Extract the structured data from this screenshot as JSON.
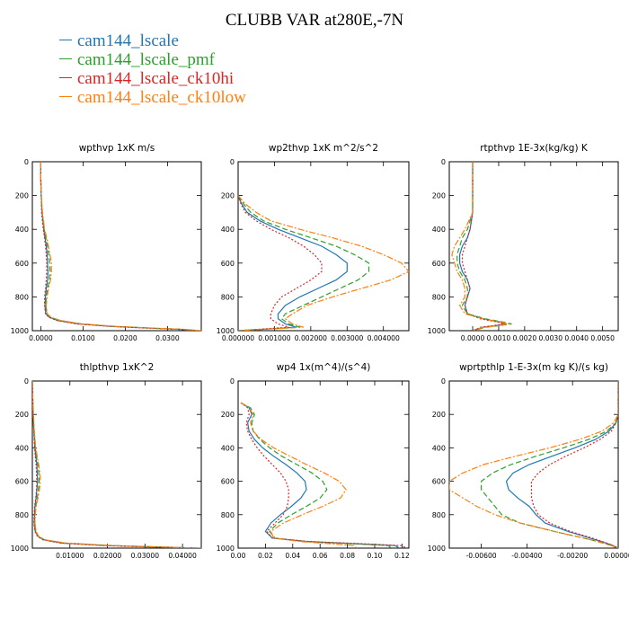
{
  "figure": {
    "title": "CLUBB VAR at280E,-7N"
  },
  "legend": {
    "items": [
      {
        "label": "cam144_lscale",
        "color": "#1f77b4",
        "dash": "solid"
      },
      {
        "label": "cam144_lscale_pmf",
        "color": "#2ca02c",
        "dash": "dashed"
      },
      {
        "label": "cam144_lscale_ck10hi",
        "color": "#d62728",
        "dash": "dotted"
      },
      {
        "label": "cam144_lscale_ck10low",
        "color": "#ff7f0e",
        "dash": "dashdot"
      }
    ]
  },
  "chart_data": [
    {
      "type": "line",
      "title": "wpthvp  1xK m/s",
      "ylim": [
        0,
        1000
      ],
      "yticks": [
        "0",
        "200",
        "400",
        "600",
        "800",
        "1000"
      ],
      "xlim": [
        -0.002,
        0.038
      ],
      "xticks": [
        {
          "v": 0.0,
          "l": "0.0000"
        },
        {
          "v": 0.01,
          "l": "0.0100"
        },
        {
          "v": 0.02,
          "l": "0.0200"
        },
        {
          "v": 0.03,
          "l": "0.0300"
        }
      ],
      "y": [
        0,
        100,
        200,
        300,
        400,
        450,
        500,
        550,
        600,
        650,
        700,
        750,
        800,
        850,
        900,
        920,
        940,
        960,
        975,
        985,
        992,
        1000
      ],
      "series": [
        {
          "name": "cam144_lscale",
          "x": [
            0.0,
            0.0,
            0.0001,
            0.0003,
            0.0007,
            0.001,
            0.0013,
            0.0015,
            0.0016,
            0.0017,
            0.0016,
            0.0013,
            0.0011,
            0.001,
            0.0012,
            0.002,
            0.004,
            0.009,
            0.017,
            0.026,
            0.033,
            0.037
          ]
        },
        {
          "name": "cam144_lscale_pmf",
          "x": [
            0.0,
            0.0,
            0.0001,
            0.0003,
            0.0008,
            0.0012,
            0.0016,
            0.0019,
            0.0021,
            0.0022,
            0.002,
            0.0016,
            0.0013,
            0.0012,
            0.0014,
            0.0022,
            0.0045,
            0.0095,
            0.0175,
            0.0265,
            0.0335,
            0.0375
          ]
        },
        {
          "name": "cam144_lscale_ck10hi",
          "x": [
            0.0,
            0.0,
            0.0001,
            0.0002,
            0.0006,
            0.0009,
            0.0011,
            0.0013,
            0.0014,
            0.0014,
            0.0013,
            0.0011,
            0.0009,
            0.0009,
            0.0011,
            0.0019,
            0.0038,
            0.0085,
            0.0165,
            0.0255,
            0.0325,
            0.0365
          ]
        },
        {
          "name": "cam144_lscale_ck10low",
          "x": [
            0.0,
            0.0,
            0.0001,
            0.0004,
            0.0009,
            0.0014,
            0.0018,
            0.0022,
            0.0025,
            0.0025,
            0.0023,
            0.0018,
            0.0015,
            0.0013,
            0.0015,
            0.0024,
            0.0047,
            0.0098,
            0.018,
            0.027,
            0.034,
            0.038
          ]
        }
      ]
    },
    {
      "type": "line",
      "title": "wp2thvp  1xK m^2/s^2",
      "ylim": [
        0,
        1000
      ],
      "yticks": [
        "0",
        "200",
        "400",
        "600",
        "800",
        "1000"
      ],
      "xlim": [
        0.0,
        0.0047
      ],
      "xticks": [
        {
          "v": 0.0,
          "l": "0.000000"
        },
        {
          "v": 0.001,
          "l": "0.001000"
        },
        {
          "v": 0.002,
          "l": "0.002000"
        },
        {
          "v": 0.003,
          "l": "0.003000"
        },
        {
          "v": 0.004,
          "l": "0.004000"
        }
      ],
      "y": [
        200,
        250,
        300,
        350,
        400,
        450,
        500,
        550,
        600,
        650,
        700,
        750,
        800,
        850,
        900,
        930,
        960,
        980,
        1000
      ],
      "series": [
        {
          "name": "cam144_lscale",
          "x": [
            0.0,
            0.0001,
            0.00025,
            0.0006,
            0.0011,
            0.0017,
            0.0023,
            0.0027,
            0.003,
            0.003,
            0.0027,
            0.0022,
            0.0017,
            0.0013,
            0.0011,
            0.0011,
            0.0013,
            0.0016,
            0.0
          ]
        },
        {
          "name": "cam144_lscale_pmf",
          "x": [
            0.0,
            0.00015,
            0.00035,
            0.0007,
            0.0013,
            0.002,
            0.0027,
            0.0032,
            0.0036,
            0.0036,
            0.0033,
            0.0028,
            0.0023,
            0.0018,
            0.0013,
            0.0012,
            0.0014,
            0.0017,
            0.0
          ]
        },
        {
          "name": "cam144_lscale_ck10hi",
          "x": [
            0.0,
            8e-05,
            0.0002,
            0.0005,
            0.0009,
            0.0014,
            0.0018,
            0.0021,
            0.0023,
            0.0023,
            0.002,
            0.0016,
            0.0012,
            0.001,
            0.0009,
            0.0009,
            0.0011,
            0.0014,
            0.0
          ]
        },
        {
          "name": "cam144_lscale_ck10low",
          "x": [
            0.0,
            0.0002,
            0.0005,
            0.0009,
            0.0017,
            0.0026,
            0.0034,
            0.004,
            0.0045,
            0.0047,
            0.0042,
            0.0034,
            0.0026,
            0.0019,
            0.0015,
            0.0013,
            0.0015,
            0.0018,
            0.0
          ]
        }
      ]
    },
    {
      "type": "line",
      "title": "rtpthvp  1E-3x(kg/kg) K",
      "ylim": [
        0,
        1000
      ],
      "yticks": [
        "0",
        "200",
        "400",
        "600",
        "800",
        "1000"
      ],
      "xlim": [
        -0.0009,
        0.0056
      ],
      "xticks": [
        {
          "v": 0.0,
          "l": "0.0000"
        },
        {
          "v": 0.001,
          "l": "0.0010"
        },
        {
          "v": 0.002,
          "l": "0.0020"
        },
        {
          "v": 0.003,
          "l": "0.0030"
        },
        {
          "v": 0.004,
          "l": "0.0040"
        },
        {
          "v": 0.005,
          "l": "0.0050"
        }
      ],
      "y": [
        0,
        100,
        200,
        300,
        400,
        450,
        500,
        550,
        600,
        650,
        700,
        750,
        800,
        850,
        900,
        930,
        950,
        960,
        970,
        980,
        1000
      ],
      "series": [
        {
          "name": "cam144_lscale",
          "x": [
            0.0,
            0.0,
            0.0,
            0.0,
            -0.0001,
            -0.0002,
            -0.0004,
            -0.0005,
            -0.0005,
            -0.0004,
            -0.0002,
            -0.0001,
            -0.0002,
            -0.0003,
            -0.0002,
            0.0004,
            0.0011,
            0.0013,
            0.0009,
            0.0004,
            0.0
          ]
        },
        {
          "name": "cam144_lscale_pmf",
          "x": [
            0.0,
            0.0,
            0.0,
            0.0,
            -0.0002,
            -0.0004,
            -0.0005,
            -0.0006,
            -0.0006,
            -0.0005,
            -0.0003,
            -0.0002,
            -0.0002,
            -0.0004,
            -0.0002,
            0.0005,
            0.0012,
            0.0015,
            0.001,
            0.0005,
            0.0
          ]
        },
        {
          "name": "cam144_lscale_ck10hi",
          "x": [
            0.0,
            0.0,
            0.0,
            0.0,
            -0.0001,
            -0.0002,
            -0.0003,
            -0.0004,
            -0.0004,
            -0.0003,
            -0.0002,
            -0.0001,
            -0.0002,
            -0.0003,
            -0.0002,
            0.0003,
            0.001,
            0.0012,
            0.0008,
            0.0003,
            0.0
          ]
        },
        {
          "name": "cam144_lscale_ck10low",
          "x": [
            0.0,
            0.0,
            0.0,
            0.0,
            -0.0003,
            -0.0005,
            -0.0007,
            -0.0008,
            -0.0007,
            -0.0006,
            -0.0004,
            -0.0003,
            -0.0003,
            -0.0005,
            -0.0003,
            0.0004,
            0.0011,
            0.0014,
            0.001,
            0.0004,
            0.0
          ]
        }
      ]
    },
    {
      "type": "line",
      "title": "thlpthvp  1xK^2",
      "ylim": [
        0,
        1000
      ],
      "yticks": [
        "0",
        "200",
        "400",
        "600",
        "800",
        "1000"
      ],
      "xlim": [
        0.0,
        0.045
      ],
      "xticks": [
        {
          "v": 0.01,
          "l": "0.01000"
        },
        {
          "v": 0.02,
          "l": "0.02000"
        },
        {
          "v": 0.03,
          "l": "0.03000"
        },
        {
          "v": 0.04,
          "l": "0.04000"
        }
      ],
      "y": [
        0,
        100,
        200,
        300,
        400,
        450,
        500,
        550,
        600,
        650,
        700,
        750,
        800,
        850,
        900,
        930,
        950,
        970,
        985,
        995,
        1000
      ],
      "series": [
        {
          "name": "cam144_lscale",
          "x": [
            0.0,
            0.0001,
            0.0002,
            0.0004,
            0.0007,
            0.0009,
            0.0012,
            0.0013,
            0.0014,
            0.0012,
            0.001,
            0.0007,
            0.0006,
            0.0005,
            0.0008,
            0.0015,
            0.003,
            0.008,
            0.02,
            0.036,
            0.044
          ]
        },
        {
          "name": "cam144_lscale_pmf",
          "x": [
            0.0,
            0.0001,
            0.0002,
            0.0005,
            0.0008,
            0.0011,
            0.0015,
            0.0017,
            0.0018,
            0.0016,
            0.0013,
            0.0009,
            0.0007,
            0.0006,
            0.0009,
            0.0016,
            0.0032,
            0.0085,
            0.021,
            0.037,
            0.045
          ]
        },
        {
          "name": "cam144_lscale_ck10hi",
          "x": [
            0.0,
            0.0001,
            0.0002,
            0.0004,
            0.0006,
            0.0008,
            0.001,
            0.0011,
            0.0012,
            0.0011,
            0.0009,
            0.0006,
            0.0005,
            0.0004,
            0.0007,
            0.0014,
            0.0028,
            0.0075,
            0.019,
            0.035,
            0.043
          ]
        },
        {
          "name": "cam144_lscale_ck10low",
          "x": [
            0.0,
            0.0001,
            0.0003,
            0.0005,
            0.0009,
            0.0013,
            0.0017,
            0.002,
            0.0021,
            0.0019,
            0.0015,
            0.001,
            0.0008,
            0.0007,
            0.001,
            0.0017,
            0.0034,
            0.009,
            0.022,
            0.038,
            0.045
          ]
        }
      ]
    },
    {
      "type": "line",
      "title": "wp4  1x(m^4)/(s^4)",
      "ylim": [
        0,
        1000
      ],
      "yticks": [
        "0",
        "200",
        "400",
        "600",
        "800",
        "1000"
      ],
      "xlim": [
        0.0,
        0.125
      ],
      "xticks": [
        {
          "v": 0.0,
          "l": "0.00"
        },
        {
          "v": 0.02,
          "l": "0.02"
        },
        {
          "v": 0.04,
          "l": "0.04"
        },
        {
          "v": 0.06,
          "l": "0.06"
        },
        {
          "v": 0.08,
          "l": "0.08"
        },
        {
          "v": 0.1,
          "l": "0.10"
        },
        {
          "v": 0.12,
          "l": "0.12"
        }
      ],
      "y": [
        130,
        160,
        200,
        250,
        300,
        350,
        400,
        450,
        500,
        550,
        600,
        650,
        700,
        750,
        800,
        850,
        900,
        940,
        960,
        975,
        985,
        1000
      ],
      "series": [
        {
          "name": "cam144_lscale",
          "x": [
            0.002,
            0.008,
            0.01,
            0.007,
            0.008,
            0.012,
            0.018,
            0.026,
            0.035,
            0.043,
            0.049,
            0.05,
            0.046,
            0.039,
            0.031,
            0.024,
            0.02,
            0.025,
            0.05,
            0.09,
            0.115,
            0.118
          ]
        },
        {
          "name": "cam144_lscale_pmf",
          "x": [
            0.002,
            0.009,
            0.012,
            0.01,
            0.011,
            0.016,
            0.023,
            0.032,
            0.043,
            0.054,
            0.062,
            0.065,
            0.06,
            0.05,
            0.039,
            0.029,
            0.023,
            0.027,
            0.05,
            0.088,
            0.11,
            0.112
          ]
        },
        {
          "name": "cam144_lscale_ck10hi",
          "x": [
            0.002,
            0.007,
            0.008,
            0.006,
            0.007,
            0.01,
            0.014,
            0.019,
            0.025,
            0.031,
            0.035,
            0.037,
            0.037,
            0.036,
            0.033,
            0.027,
            0.021,
            0.025,
            0.052,
            0.095,
            0.12,
            0.123
          ]
        },
        {
          "name": "cam144_lscale_ck10low",
          "x": [
            0.002,
            0.008,
            0.011,
            0.009,
            0.011,
            0.017,
            0.026,
            0.038,
            0.05,
            0.063,
            0.074,
            0.079,
            0.075,
            0.062,
            0.047,
            0.033,
            0.024,
            0.026,
            0.045,
            0.07,
            0.085,
            0.087
          ]
        }
      ]
    },
    {
      "type": "line",
      "title": "wprtpthlp  1-E-3x(m kg K)/(s kg)",
      "ylim": [
        0,
        1000
      ],
      "yticks": [
        "0",
        "200",
        "400",
        "600",
        "800",
        "1000"
      ],
      "xlim": [
        -0.0074,
        0.0
      ],
      "xticks": [
        {
          "v": -0.006,
          "l": "-0.00600"
        },
        {
          "v": -0.004,
          "l": "-0.00400"
        },
        {
          "v": -0.002,
          "l": "-0.00200"
        },
        {
          "v": 0.0,
          "l": "0.00000"
        }
      ],
      "y": [
        0,
        100,
        200,
        250,
        300,
        350,
        400,
        450,
        500,
        550,
        600,
        650,
        700,
        750,
        800,
        850,
        900,
        950,
        980,
        1000
      ],
      "series": [
        {
          "name": "cam144_lscale",
          "x": [
            0.0,
            0.0,
            0.0,
            -0.0001,
            -0.0004,
            -0.001,
            -0.0019,
            -0.0029,
            -0.0039,
            -0.0046,
            -0.0049,
            -0.0048,
            -0.0044,
            -0.0039,
            -0.0036,
            -0.0032,
            -0.0022,
            -0.001,
            -0.0003,
            0.0
          ]
        },
        {
          "name": "cam144_lscale_pmf",
          "x": [
            0.0,
            0.0,
            0.0,
            -0.0001,
            -0.0005,
            -0.0013,
            -0.0024,
            -0.0036,
            -0.0047,
            -0.0055,
            -0.006,
            -0.006,
            -0.0057,
            -0.0054,
            -0.0051,
            -0.0043,
            -0.0028,
            -0.0012,
            -0.0004,
            0.0
          ]
        },
        {
          "name": "cam144_lscale_ck10hi",
          "x": [
            0.0,
            0.0,
            0.0,
            -0.0001,
            -0.0003,
            -0.0008,
            -0.0015,
            -0.0023,
            -0.003,
            -0.0035,
            -0.0038,
            -0.0038,
            -0.0038,
            -0.0037,
            -0.0035,
            -0.003,
            -0.0021,
            -0.0009,
            -0.0003,
            0.0
          ]
        },
        {
          "name": "cam144_lscale_ck10low",
          "x": [
            0.0,
            0.0,
            0.0,
            -0.0002,
            -0.0007,
            -0.0017,
            -0.003,
            -0.0045,
            -0.0059,
            -0.0068,
            -0.0074,
            -0.0074,
            -0.0068,
            -0.0062,
            -0.0054,
            -0.0043,
            -0.0028,
            -0.0012,
            -0.0004,
            0.0
          ]
        }
      ]
    }
  ]
}
